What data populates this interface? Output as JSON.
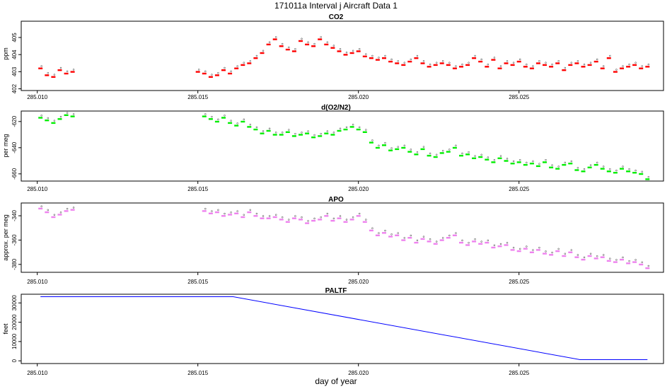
{
  "figure": {
    "title": "171011a   Interval j Aircraft Data 1",
    "xlabel": "day of year"
  },
  "chart_data": [
    {
      "type": "scatter",
      "title": "CO2",
      "ylabel": "ppm",
      "color": "#ff0000",
      "xlim": [
        285.0095,
        285.0295
      ],
      "ylim": [
        401.9,
        405.95
      ],
      "xticks": [
        "285.010",
        "285.015",
        "285.020",
        "285.025"
      ],
      "yticks": [
        "402",
        "403",
        "404",
        "405"
      ],
      "series": [
        {
          "x": [
            285.0101,
            285.0103,
            285.0105,
            285.0107,
            285.0109,
            285.0111,
            285.015,
            285.0152,
            285.0154,
            285.0156,
            285.0158,
            285.016,
            285.0162,
            285.0164,
            285.0166,
            285.0168,
            285.017,
            285.0172,
            285.0174,
            285.0176,
            285.0178,
            285.018,
            285.0182,
            285.0184,
            285.0186,
            285.0188,
            285.019,
            285.0192,
            285.0194,
            285.0196,
            285.0198,
            285.02,
            285.0202,
            285.0204,
            285.0206,
            285.0208,
            285.021,
            285.0212,
            285.0214,
            285.0216,
            285.0218,
            285.022,
            285.0222,
            285.0224,
            285.0226,
            285.0228,
            285.023,
            285.0232,
            285.0234,
            285.0236,
            285.0238,
            285.024,
            285.0242,
            285.0244,
            285.0246,
            285.0248,
            285.025,
            285.0252,
            285.0254,
            285.0256,
            285.0258,
            285.026,
            285.0262,
            285.0264,
            285.0266,
            285.0268,
            285.027,
            285.0272,
            285.0274,
            285.0276,
            285.0278,
            285.028,
            285.0282,
            285.0284,
            285.0286,
            285.0288,
            285.029
          ],
          "y": [
            403.2,
            402.8,
            402.7,
            403.1,
            402.9,
            403.0,
            403.0,
            402.9,
            402.7,
            402.8,
            403.1,
            402.9,
            403.2,
            403.4,
            403.5,
            403.8,
            404.1,
            404.6,
            404.9,
            404.5,
            404.3,
            404.2,
            404.8,
            404.6,
            404.5,
            404.9,
            404.6,
            404.4,
            404.2,
            404.0,
            404.1,
            404.2,
            403.9,
            403.8,
            403.7,
            403.8,
            403.6,
            403.5,
            403.4,
            403.6,
            403.8,
            403.5,
            403.3,
            403.4,
            403.5,
            403.4,
            403.2,
            403.3,
            403.4,
            403.8,
            403.6,
            403.3,
            403.7,
            403.2,
            403.5,
            403.4,
            403.6,
            403.3,
            403.2,
            403.5,
            403.4,
            403.3,
            403.5,
            403.1,
            403.4,
            403.5,
            403.3,
            403.4,
            403.6,
            403.2,
            403.8,
            403.0,
            403.2,
            403.3,
            403.4,
            403.2,
            403.3
          ]
        }
      ]
    },
    {
      "type": "scatter",
      "title": "d(O2/N2)",
      "ylabel": "per meg",
      "color": "#00ee00",
      "xlim": [
        285.0095,
        285.0295
      ],
      "ylim": [
        -665.5,
        -612
      ],
      "xticks": [
        "285.010",
        "285.015",
        "285.020",
        "285.025"
      ],
      "yticks": [
        "-620",
        "-640",
        "-660"
      ],
      "series": [
        {
          "x": [
            285.0101,
            285.0103,
            285.0105,
            285.0107,
            285.0109,
            285.0111,
            285.0152,
            285.0154,
            285.0156,
            285.0158,
            285.016,
            285.0162,
            285.0164,
            285.0166,
            285.0168,
            285.017,
            285.0172,
            285.0174,
            285.0176,
            285.0178,
            285.018,
            285.0182,
            285.0184,
            285.0186,
            285.0188,
            285.019,
            285.0192,
            285.0194,
            285.0196,
            285.0198,
            285.02,
            285.0202,
            285.0204,
            285.0206,
            285.0208,
            285.021,
            285.0212,
            285.0214,
            285.0216,
            285.0218,
            285.022,
            285.0222,
            285.0224,
            285.0226,
            285.0228,
            285.023,
            285.0232,
            285.0234,
            285.0236,
            285.0238,
            285.024,
            285.0242,
            285.0244,
            285.0246,
            285.0248,
            285.025,
            285.0252,
            285.0254,
            285.0256,
            285.0258,
            285.026,
            285.0262,
            285.0264,
            285.0266,
            285.0268,
            285.027,
            285.0272,
            285.0274,
            285.0276,
            285.0278,
            285.028,
            285.0282,
            285.0284,
            285.0286,
            285.0288,
            285.029
          ],
          "y": [
            -617,
            -619,
            -621,
            -618,
            -615,
            -616,
            -616,
            -618,
            -620,
            -617,
            -621,
            -623,
            -620,
            -624,
            -626,
            -629,
            -627,
            -630,
            -630,
            -628,
            -631,
            -630,
            -629,
            -632,
            -631,
            -629,
            -630,
            -627,
            -626,
            -624,
            -626,
            -628,
            -636,
            -640,
            -638,
            -642,
            -641,
            -640,
            -643,
            -645,
            -641,
            -646,
            -647,
            -644,
            -643,
            -640,
            -646,
            -645,
            -648,
            -647,
            -649,
            -651,
            -648,
            -650,
            -652,
            -651,
            -653,
            -652,
            -654,
            -651,
            -655,
            -656,
            -653,
            -652,
            -657,
            -658,
            -655,
            -653,
            -656,
            -658,
            -659,
            -656,
            -658,
            -659,
            -660,
            -664
          ]
        }
      ]
    },
    {
      "type": "scatter",
      "title": "APO",
      "ylabel": "approx. per meg",
      "color": "#ee82ee",
      "xlim": [
        285.0095,
        285.0295
      ],
      "ylim": [
        -386.5,
        -329.5
      ],
      "xticks": [
        "285.010",
        "285.015",
        "285.020",
        "285.025"
      ],
      "yticks": [
        "-340",
        "-360",
        "-380"
      ],
      "series": [
        {
          "x": [
            285.0101,
            285.0103,
            285.0105,
            285.0107,
            285.0109,
            285.0111,
            285.0152,
            285.0154,
            285.0156,
            285.0158,
            285.016,
            285.0162,
            285.0164,
            285.0166,
            285.0168,
            285.017,
            285.0172,
            285.0174,
            285.0176,
            285.0178,
            285.018,
            285.0182,
            285.0184,
            285.0186,
            285.0188,
            285.019,
            285.0192,
            285.0194,
            285.0196,
            285.0198,
            285.02,
            285.0202,
            285.0204,
            285.0206,
            285.0208,
            285.021,
            285.0212,
            285.0214,
            285.0216,
            285.0218,
            285.022,
            285.0222,
            285.0224,
            285.0226,
            285.0228,
            285.023,
            285.0232,
            285.0234,
            285.0236,
            285.0238,
            285.024,
            285.0242,
            285.0244,
            285.0246,
            285.0248,
            285.025,
            285.0252,
            285.0254,
            285.0256,
            285.0258,
            285.026,
            285.0262,
            285.0264,
            285.0266,
            285.0268,
            285.027,
            285.0272,
            285.0274,
            285.0276,
            285.0278,
            285.028,
            285.0282,
            285.0284,
            285.0286,
            285.0288,
            285.029
          ],
          "y": [
            -334,
            -337,
            -341,
            -339,
            -336,
            -335,
            -336,
            -338,
            -337,
            -340,
            -339,
            -338,
            -341,
            -337,
            -340,
            -342,
            -342,
            -341,
            -343,
            -345,
            -342,
            -343,
            -346,
            -344,
            -343,
            -340,
            -344,
            -342,
            -345,
            -343,
            -340,
            -345,
            -352,
            -356,
            -354,
            -357,
            -356,
            -360,
            -358,
            -362,
            -359,
            -361,
            -363,
            -360,
            -358,
            -356,
            -362,
            -364,
            -361,
            -363,
            -362,
            -366,
            -365,
            -364,
            -368,
            -369,
            -367,
            -370,
            -368,
            -371,
            -372,
            -369,
            -373,
            -370,
            -374,
            -376,
            -373,
            -375,
            -374,
            -377,
            -378,
            -376,
            -379,
            -378,
            -380,
            -383
          ]
        }
      ]
    },
    {
      "type": "line",
      "title": "PALTF",
      "ylabel": "feet",
      "color": "#0000ff",
      "xlim": [
        285.0095,
        285.0295
      ],
      "ylim": [
        -1400,
        34500
      ],
      "xticks": [
        "285.010",
        "285.015",
        "285.020",
        "285.025"
      ],
      "yticks": [
        "0",
        "10000",
        "20000",
        "30000"
      ],
      "series": [
        {
          "x": [
            285.0101,
            285.0161,
            285.0269,
            285.029
          ],
          "y": [
            33200,
            33200,
            600,
            600
          ]
        }
      ]
    }
  ]
}
